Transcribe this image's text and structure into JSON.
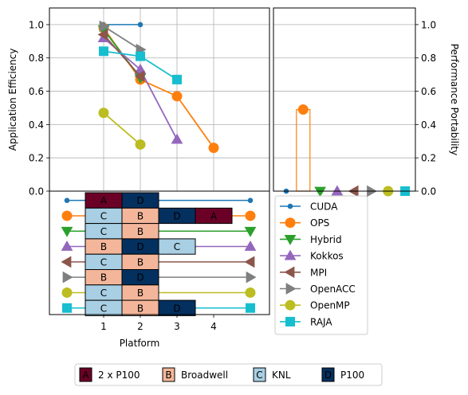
{
  "chart_data": {
    "type": "line",
    "platform_legend": [
      {
        "code": "A",
        "label": "2 x P100",
        "color": "#6b0026"
      },
      {
        "code": "B",
        "label": "Broadwell",
        "color": "#f4b69a"
      },
      {
        "code": "C",
        "label": "KNL",
        "color": "#a8cfe3"
      },
      {
        "code": "D",
        "label": "P100",
        "color": "#03305f"
      }
    ],
    "efficiency_chart": {
      "ylabel": "Application Efficiency",
      "xlabel": "Platform",
      "x_ticks": [
        "1",
        "2",
        "3",
        "4"
      ],
      "y_ticks": [
        "0.0",
        "0.2",
        "0.4",
        "0.6",
        "0.8",
        "1.0"
      ],
      "ylim": [
        0,
        1.1
      ],
      "grid": true,
      "series": [
        {
          "name": "CUDA",
          "color": "#1f77b4",
          "marker": "circle-small",
          "x": [
            1,
            2
          ],
          "y": [
            1.0,
            1.0
          ]
        },
        {
          "name": "OPS",
          "color": "#ff7f0e",
          "marker": "circle",
          "x": [
            1,
            2,
            3,
            4
          ],
          "y": [
            0.98,
            0.67,
            0.57,
            0.26
          ]
        },
        {
          "name": "Hybrid",
          "color": "#2ca02c",
          "marker": "triangle-down",
          "x": [
            1,
            2
          ],
          "y": [
            0.97,
            0.68
          ]
        },
        {
          "name": "Kokkos",
          "color": "#9467bd",
          "marker": "triangle-up",
          "x": [
            1,
            2,
            3
          ],
          "y": [
            0.92,
            0.73,
            0.31
          ]
        },
        {
          "name": "MPI",
          "color": "#8c564b",
          "marker": "triangle-left",
          "x": [
            1,
            2
          ],
          "y": [
            0.94,
            0.69
          ]
        },
        {
          "name": "OpenACC",
          "color": "#7f7f7f",
          "marker": "triangle-right",
          "x": [
            1,
            2
          ],
          "y": [
            0.99,
            0.85
          ]
        },
        {
          "name": "OpenMP",
          "color": "#bcbd22",
          "marker": "circle",
          "x": [
            1,
            2
          ],
          "y": [
            0.47,
            0.28
          ]
        },
        {
          "name": "RAJA",
          "color": "#17becf",
          "marker": "square",
          "x": [
            1,
            2,
            3
          ],
          "y": [
            0.84,
            0.81,
            0.67
          ]
        }
      ],
      "platform_rows": [
        [
          "A",
          "D"
        ],
        [
          "C",
          "B",
          "D",
          "A"
        ],
        [
          "C",
          "B"
        ],
        [
          "B",
          "D",
          "C"
        ],
        [
          "C",
          "B"
        ],
        [
          "B",
          "D"
        ],
        [
          "C",
          "B"
        ],
        [
          "C",
          "B",
          "D"
        ]
      ]
    },
    "portability_chart": {
      "ylabel": "Performance Portability",
      "y_ticks": [
        "0.0",
        "0.2",
        "0.4",
        "0.6",
        "0.8",
        "1.0"
      ],
      "ylim": [
        0,
        1.1
      ],
      "values": [
        0.0,
        0.49,
        0.0,
        0.0,
        0.0,
        0.0,
        0.0,
        0.0
      ]
    }
  }
}
